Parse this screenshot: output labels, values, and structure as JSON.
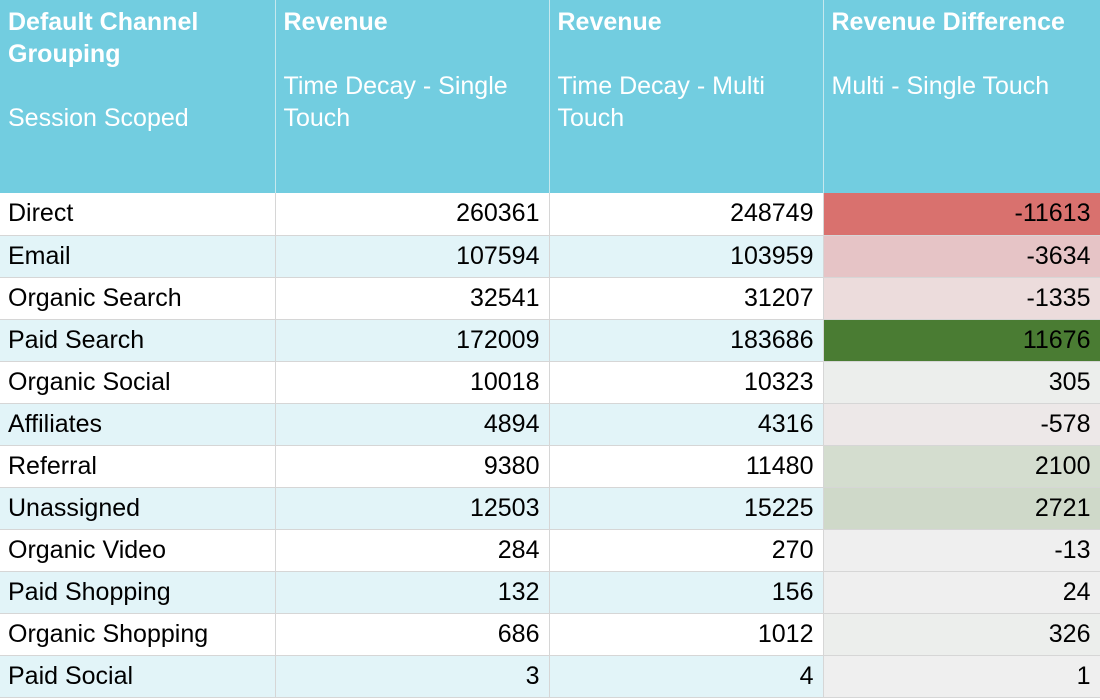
{
  "headers": [
    {
      "title": "Default Channel Grouping",
      "subtitle": "Session Scoped"
    },
    {
      "title": "Revenue",
      "subtitle": "Time Decay - Single Touch"
    },
    {
      "title": "Revenue",
      "subtitle": "Time Decay - Multi Touch"
    },
    {
      "title": "Revenue Difference",
      "subtitle": "Multi - Single Touch"
    }
  ],
  "rows": [
    {
      "channel": "Direct",
      "single": "260361",
      "multi": "248749",
      "diff": "-11613",
      "diff_color": "#d9716e"
    },
    {
      "channel": "Email",
      "single": "107594",
      "multi": "103959",
      "diff": "-3634",
      "diff_color": "#e6c4c6"
    },
    {
      "channel": "Organic Search",
      "single": "32541",
      "multi": "31207",
      "diff": "-1335",
      "diff_color": "#ecdcdc"
    },
    {
      "channel": "Paid Search",
      "single": "172009",
      "multi": "183686",
      "diff": "11676",
      "diff_color": "#4a7c33"
    },
    {
      "channel": "Organic Social",
      "single": "10018",
      "multi": "10323",
      "diff": "305",
      "diff_color": "#eceeec"
    },
    {
      "channel": "Affiliates",
      "single": "4894",
      "multi": "4316",
      "diff": "-578",
      "diff_color": "#ede8e8"
    },
    {
      "channel": "Referral",
      "single": "9380",
      "multi": "11480",
      "diff": "2100",
      "diff_color": "#d4ddcf"
    },
    {
      "channel": "Unassigned",
      "single": "12503",
      "multi": "15225",
      "diff": "2721",
      "diff_color": "#cfd9c9"
    },
    {
      "channel": "Organic Video",
      "single": "284",
      "multi": "270",
      "diff": "-13",
      "diff_color": "#efefef"
    },
    {
      "channel": "Paid Shopping",
      "single": "132",
      "multi": "156",
      "diff": "24",
      "diff_color": "#efefef"
    },
    {
      "channel": "Organic Shopping",
      "single": "686",
      "multi": "1012",
      "diff": "326",
      "diff_color": "#eceeec"
    },
    {
      "channel": "Paid Social",
      "single": "3",
      "multi": "4",
      "diff": "1",
      "diff_color": "#efefef"
    }
  ],
  "colors": {
    "header_bg": "#72cde0",
    "header_text": "#ffffff",
    "band_row": "#e2f4f8",
    "plain_row": "#ffffff"
  }
}
